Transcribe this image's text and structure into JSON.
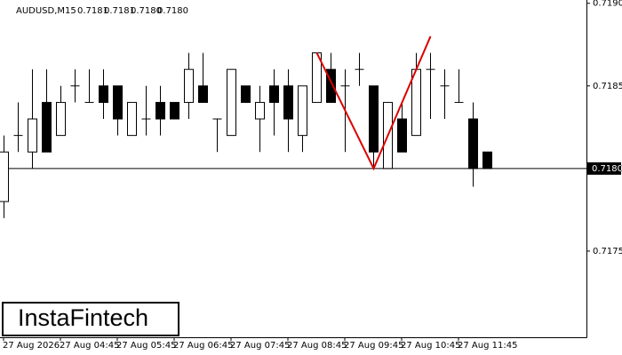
{
  "chart_data": {
    "type": "candlestick",
    "symbol": "AUDUSD,M15",
    "quote": [
      "0.7181",
      "0.7181",
      "0.7180",
      "0.7180"
    ],
    "watermark": "InstaFintech",
    "categories": [
      "27 Aug 2026",
      null,
      null,
      null,
      "27 Aug 04:45",
      null,
      null,
      null,
      "27 Aug 05:45",
      null,
      null,
      null,
      "27 Aug 06:45",
      null,
      null,
      null,
      "27 Aug 07:45",
      null,
      null,
      null,
      "27 Aug 08:45",
      null,
      null,
      null,
      "27 Aug 09:45",
      null,
      null,
      null,
      "27 Aug 10:45",
      null,
      null,
      null,
      "27 Aug 11:45",
      null,
      null
    ],
    "open": [
      0.7178,
      0.7182,
      0.7181,
      0.7184,
      0.7182,
      0.7185,
      0.7184,
      0.7185,
      0.7185,
      0.7182,
      0.7183,
      0.7184,
      0.7184,
      0.7184,
      0.7185,
      0.7183,
      0.7182,
      0.7185,
      0.7183,
      0.7185,
      0.7185,
      0.7182,
      0.7184,
      0.7186,
      0.7185,
      0.7186,
      0.7185,
      0.718,
      0.7183,
      0.7182,
      0.7186,
      0.7185,
      0.7184,
      0.7183,
      0.7181
    ],
    "high": [
      0.7182,
      0.7184,
      0.7186,
      0.7186,
      0.7185,
      0.7186,
      0.7186,
      0.7186,
      0.7185,
      0.7184,
      0.7185,
      0.7185,
      0.7184,
      0.7187,
      0.7187,
      0.7183,
      0.7186,
      0.7185,
      0.7185,
      0.7186,
      0.7186,
      0.7185,
      0.7187,
      0.7187,
      0.7186,
      0.7187,
      0.7185,
      0.7184,
      0.7184,
      0.7187,
      0.7187,
      0.7186,
      0.7186,
      0.7184,
      0.7181
    ],
    "low": [
      0.7177,
      0.7181,
      0.718,
      0.7181,
      0.7182,
      0.7184,
      0.7184,
      0.7183,
      0.7182,
      0.7182,
      0.7182,
      0.7182,
      0.7183,
      0.7183,
      0.7184,
      0.7181,
      0.7182,
      0.7184,
      0.7181,
      0.7182,
      0.7181,
      0.7181,
      0.7184,
      0.7184,
      0.7181,
      0.7185,
      0.718,
      0.718,
      0.7181,
      0.7182,
      0.7183,
      0.7183,
      0.7184,
      0.71789,
      0.718
    ],
    "close": [
      0.7181,
      0.7182,
      0.7183,
      0.7181,
      0.7184,
      0.7185,
      0.7184,
      0.7184,
      0.7183,
      0.7184,
      0.7183,
      0.7183,
      0.7183,
      0.7186,
      0.7184,
      0.7183,
      0.7186,
      0.7184,
      0.7184,
      0.7184,
      0.7183,
      0.7185,
      0.7187,
      0.7184,
      0.7185,
      0.7186,
      0.7181,
      0.7184,
      0.7181,
      0.7186,
      0.7186,
      0.7185,
      0.7184,
      0.718,
      0.718
    ],
    "up_color": "#ffffff",
    "down_color": "#000000",
    "ylim": [
      0.717,
      0.71902
    ],
    "yticks": [
      {
        "value": 0.719,
        "label": "0.7190"
      },
      {
        "value": 0.7185,
        "label": "0.7185"
      },
      {
        "value": 0.718,
        "label": "0.7180"
      },
      {
        "value": 0.7175,
        "label": "0.7175"
      }
    ],
    "price_line": {
      "value": 0.718,
      "label": "0.7180"
    },
    "pattern": {
      "color": "#dd0000",
      "x": [
        22,
        26,
        30
      ],
      "values": [
        0.7187,
        0.718,
        0.7188
      ]
    }
  }
}
